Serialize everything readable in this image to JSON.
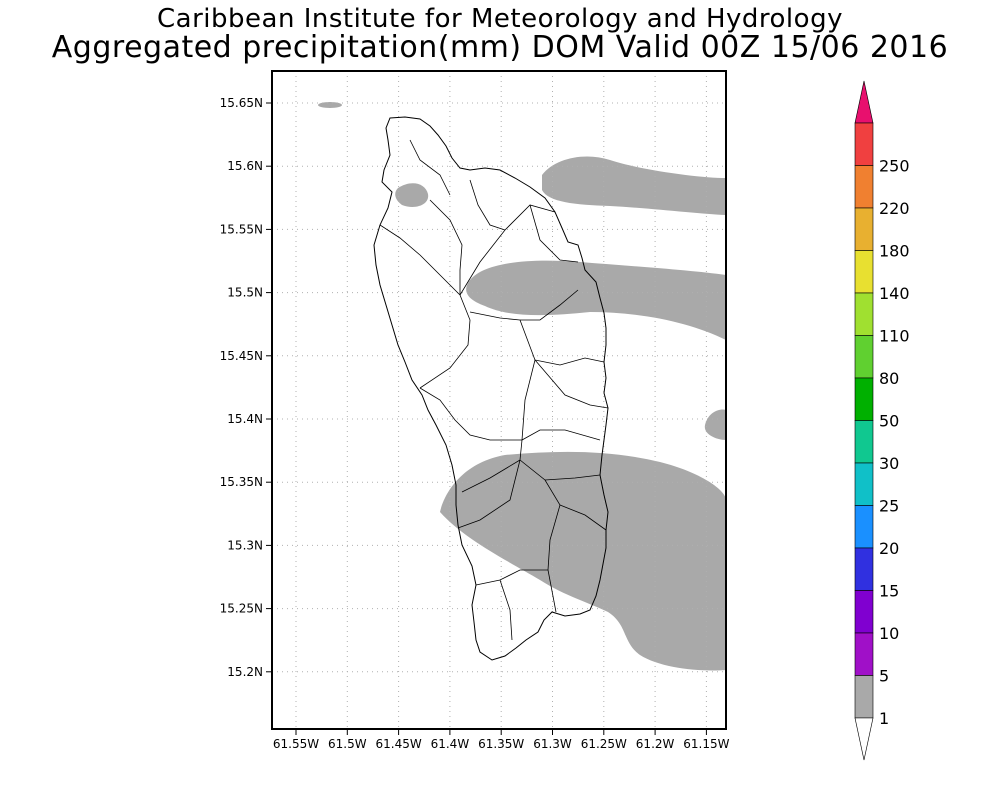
{
  "title": {
    "line1": "Caribbean Institute for Meteorology and Hydrology",
    "line2": "Aggregated precipitation(mm) DOM Valid 00Z 15/06 2016"
  },
  "map": {
    "lat_labels": [
      "15.65N",
      "15.6N",
      "15.55N",
      "15.5N",
      "15.45N",
      "15.4N",
      "15.35N",
      "15.3N",
      "15.25N",
      "15.2N"
    ],
    "lon_labels": [
      "61.55W",
      "61.5W",
      "61.45W",
      "61.4W",
      "61.35W",
      "61.3W",
      "61.25W",
      "61.2W",
      "61.15W"
    ],
    "precip_fill_color": "#a9a9a9",
    "land_outline_color": "#000000"
  },
  "colorbar": {
    "labels": [
      "1",
      "5",
      "10",
      "15",
      "20",
      "25",
      "30",
      "50",
      "80",
      "110",
      "140",
      "180",
      "220",
      "250"
    ],
    "colors": [
      "#a9a9a9",
      "#a010c8",
      "#8000d0",
      "#3030e0",
      "#1a90ff",
      "#10c0c8",
      "#10c890",
      "#00b000",
      "#60d030",
      "#a0e030",
      "#e8e030",
      "#e8b030",
      "#f08030",
      "#f04040",
      "#e8106e"
    ]
  }
}
